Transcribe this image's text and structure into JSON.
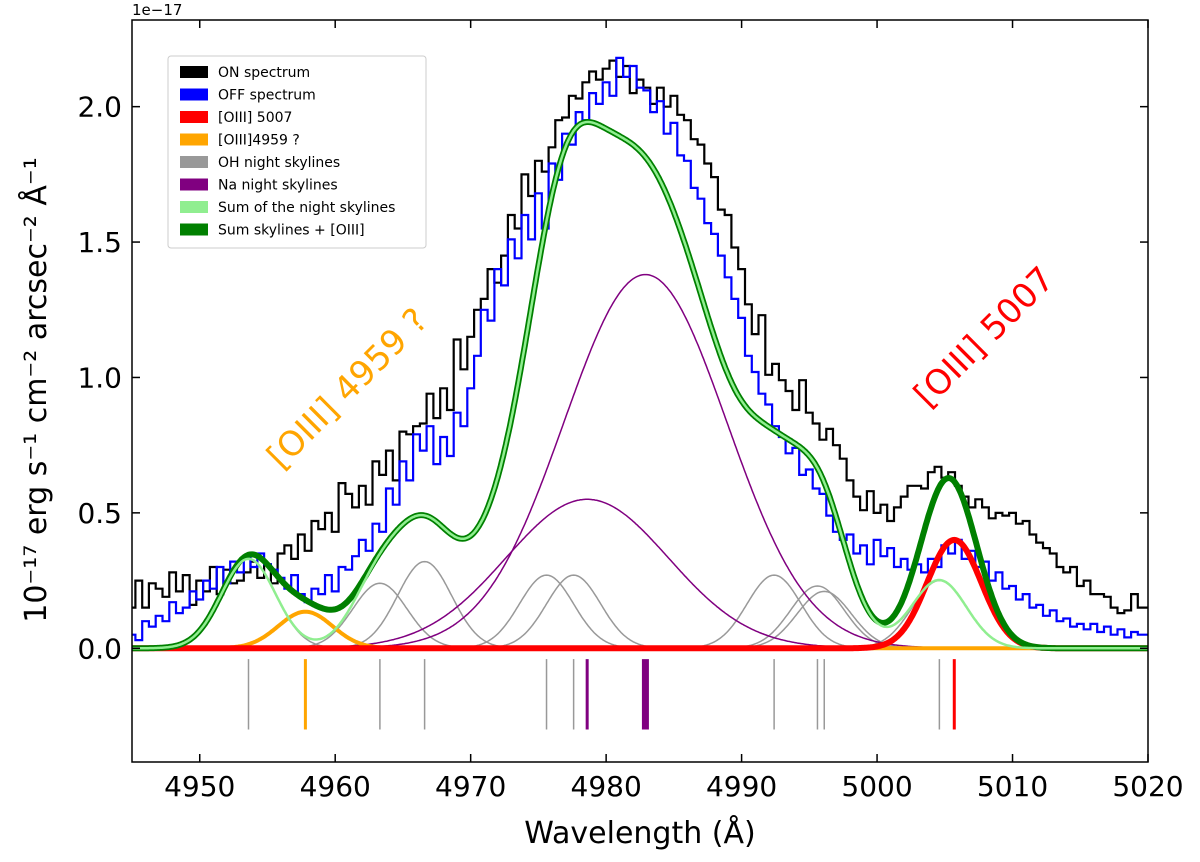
{
  "chart_data": {
    "type": "line",
    "title": "",
    "xlabel": "Wavelength (Å)",
    "ylabel": "10⁻¹⁷ erg s⁻¹ cm⁻² arcsec⁻² Å⁻¹",
    "offset_label": "1e−17",
    "xlim": [
      4945,
      5020
    ],
    "ylim": [
      -0.42,
      2.32
    ],
    "xticks": [
      4950,
      4960,
      4970,
      4980,
      4990,
      5000,
      5010,
      5020
    ],
    "yticks": [
      0.0,
      0.5,
      1.0,
      1.5,
      2.0
    ],
    "ytick_labels": [
      "0.0",
      "0.5",
      "1.0",
      "1.5",
      "2.0"
    ],
    "legend_position": "top-left",
    "legend": [
      {
        "label": "ON spectrum",
        "color": "#000000"
      },
      {
        "label": "OFF spectrum",
        "color": "#0000ff"
      },
      {
        "label": "[OIII] 5007",
        "color": "#ff0000"
      },
      {
        "label": "[OIII]4959 ?",
        "color": "#ffa500"
      },
      {
        "label": "OH night skylines",
        "color": "#999999"
      },
      {
        "label": "Na night skylines",
        "color": "#800080"
      },
      {
        "label": "Sum of the night skylines",
        "color": "#90ee90"
      },
      {
        "label": "Sum skylines + [OIII]",
        "color": "#008000"
      }
    ],
    "annotations": [
      {
        "text": "[OIII] 4959 ?",
        "color": "#ffa500",
        "x": 4961.5,
        "y": 0.93,
        "rotation": -45
      },
      {
        "text": "[OIII] 5007",
        "color": "#ff0000",
        "x": 5008.5,
        "y": 1.12,
        "rotation": -45
      }
    ],
    "components": {
      "oiii_5007": {
        "center": 5005.7,
        "amplitude": 0.4,
        "sigma": 2.0,
        "color": "#ff0000"
      },
      "oiii_4959": {
        "center": 4957.8,
        "amplitude": 0.135,
        "sigma": 2.0,
        "color": "#ffa500"
      },
      "oh_lines": {
        "color": "#999999",
        "lines": [
          {
            "center": 4953.6,
            "amplitude": 0.33,
            "sigma": 2.0
          },
          {
            "center": 4963.3,
            "amplitude": 0.24,
            "sigma": 2.0
          },
          {
            "center": 4966.6,
            "amplitude": 0.32,
            "sigma": 2.0
          },
          {
            "center": 4975.6,
            "amplitude": 0.27,
            "sigma": 2.0
          },
          {
            "center": 4977.6,
            "amplitude": 0.27,
            "sigma": 2.0
          },
          {
            "center": 4992.4,
            "amplitude": 0.27,
            "sigma": 2.0
          },
          {
            "center": 4995.6,
            "amplitude": 0.23,
            "sigma": 2.0
          },
          {
            "center": 4996.1,
            "amplitude": 0.21,
            "sigma": 2.0
          },
          {
            "center": 5004.6,
            "amplitude": 0.25,
            "sigma": 2.0
          }
        ]
      },
      "na_lines": {
        "color": "#800080",
        "lines": [
          {
            "center": 4978.6,
            "amplitude": 0.55,
            "sigma": 6.0
          },
          {
            "center": 4982.9,
            "amplitude": 1.38,
            "sigma": 6.0
          }
        ]
      }
    },
    "line_markers": [
      {
        "x": 4953.6,
        "color": "#999999",
        "weight": "thin"
      },
      {
        "x": 4957.8,
        "color": "#ffa500",
        "weight": "medium"
      },
      {
        "x": 4963.3,
        "color": "#999999",
        "weight": "thin"
      },
      {
        "x": 4966.6,
        "color": "#999999",
        "weight": "thin"
      },
      {
        "x": 4975.6,
        "color": "#999999",
        "weight": "thin"
      },
      {
        "x": 4977.6,
        "color": "#999999",
        "weight": "thin"
      },
      {
        "x": 4978.6,
        "color": "#800080",
        "weight": "medium"
      },
      {
        "x": 4982.9,
        "color": "#800080",
        "weight": "thick"
      },
      {
        "x": 4992.4,
        "color": "#999999",
        "weight": "thin"
      },
      {
        "x": 4995.6,
        "color": "#999999",
        "weight": "thin"
      },
      {
        "x": 4996.1,
        "color": "#999999",
        "weight": "thin"
      },
      {
        "x": 5004.6,
        "color": "#999999",
        "weight": "thin"
      },
      {
        "x": 5005.7,
        "color": "#ff0000",
        "weight": "medium"
      }
    ],
    "marker_range": [
      -0.3,
      -0.04
    ],
    "series": [
      {
        "name": "ON spectrum",
        "color": "#000000",
        "step": true,
        "x": [
          4945.0,
          4945.5,
          4946.0,
          4946.5,
          4947.0,
          4947.5,
          4948.0,
          4948.5,
          4949.0,
          4949.5,
          4950.0,
          4950.5,
          4951.0,
          4951.5,
          4952.0,
          4952.5,
          4953.0,
          4953.5,
          4954.0,
          4954.5,
          4955.0,
          4955.5,
          4956.0,
          4956.5,
          4957.0,
          4957.5,
          4958.0,
          4958.5,
          4959.0,
          4959.5,
          4960.0,
          4960.5,
          4961.0,
          4961.5,
          4962.0,
          4962.5,
          4963.0,
          4963.5,
          4964.0,
          4964.5,
          4965.0,
          4965.5,
          4966.0,
          4966.5,
          4967.0,
          4967.5,
          4968.0,
          4968.5,
          4969.0,
          4969.5,
          4970.0,
          4970.5,
          4971.0,
          4971.5,
          4972.0,
          4972.5,
          4973.0,
          4973.5,
          4974.0,
          4974.5,
          4975.0,
          4975.5,
          4976.0,
          4976.5,
          4977.0,
          4977.5,
          4978.0,
          4978.5,
          4979.0,
          4979.5,
          4980.0,
          4980.5,
          4981.0,
          4981.5,
          4982.0,
          4982.5,
          4983.0,
          4983.5,
          4984.0,
          4984.5,
          4985.0,
          4985.5,
          4986.0,
          4986.5,
          4987.0,
          4987.5,
          4988.0,
          4988.5,
          4989.0,
          4989.5,
          4990.0,
          4990.5,
          4991.0,
          4991.5,
          4992.0,
          4992.5,
          4993.0,
          4993.5,
          4994.0,
          4994.5,
          4995.0,
          4995.5,
          4996.0,
          4996.5,
          4997.0,
          4997.5,
          4998.0,
          4998.5,
          4999.0,
          4999.5,
          5000.0,
          5000.5,
          5001.0,
          5001.5,
          5002.0,
          5002.5,
          5003.0,
          5003.5,
          5004.0,
          5004.5,
          5005.0,
          5005.5,
          5006.0,
          5006.5,
          5007.0,
          5007.5,
          5008.0,
          5008.5,
          5009.0,
          5009.5,
          5010.0,
          5010.5,
          5011.0,
          5011.5,
          5012.0,
          5012.5,
          5013.0,
          5013.5,
          5014.0,
          5014.5,
          5015.0,
          5015.5,
          5016.0,
          5016.5,
          5017.0,
          5017.5,
          5018.0,
          5018.5,
          5019.0,
          5019.5,
          5020.0
        ],
        "y": [
          0.15,
          0.25,
          0.15,
          0.24,
          0.22,
          0.19,
          0.28,
          0.21,
          0.27,
          0.16,
          0.25,
          0.21,
          0.3,
          0.2,
          0.29,
          0.24,
          0.25,
          0.28,
          0.32,
          0.26,
          0.31,
          0.24,
          0.35,
          0.38,
          0.33,
          0.42,
          0.36,
          0.47,
          0.44,
          0.5,
          0.43,
          0.61,
          0.57,
          0.52,
          0.6,
          0.53,
          0.69,
          0.64,
          0.73,
          0.62,
          0.8,
          0.79,
          0.82,
          0.83,
          0.94,
          0.85,
          0.96,
          0.88,
          1.14,
          1.03,
          1.15,
          1.25,
          1.29,
          1.4,
          1.35,
          1.45,
          1.6,
          1.55,
          1.75,
          1.67,
          1.8,
          1.76,
          1.85,
          1.95,
          1.96,
          2.04,
          2.03,
          2.09,
          2.13,
          2.1,
          2.14,
          2.17,
          2.11,
          2.15,
          2.05,
          2.1,
          2.07,
          2.01,
          2.07,
          2.0,
          2.04,
          1.97,
          1.95,
          1.88,
          1.86,
          1.79,
          1.74,
          1.62,
          1.6,
          1.48,
          1.4,
          1.27,
          1.16,
          1.23,
          1.01,
          1.05,
          0.99,
          0.95,
          0.88,
          0.99,
          0.87,
          0.83,
          0.77,
          0.81,
          0.75,
          0.7,
          0.62,
          0.56,
          0.51,
          0.58,
          0.5,
          0.53,
          0.47,
          0.52,
          0.56,
          0.6,
          0.6,
          0.59,
          0.65,
          0.67,
          0.63,
          0.65,
          0.6,
          0.56,
          0.52,
          0.55,
          0.52,
          0.48,
          0.5,
          0.49,
          0.5,
          0.46,
          0.47,
          0.42,
          0.39,
          0.37,
          0.35,
          0.3,
          0.28,
          0.3,
          0.23,
          0.25,
          0.2,
          0.2,
          0.19,
          0.15,
          0.13,
          0.14,
          0.2,
          0.15,
          0.15
        ]
      },
      {
        "name": "OFF spectrum",
        "color": "#0000ff",
        "step": true,
        "x": [
          4945.0,
          4945.5,
          4946.0,
          4946.5,
          4947.0,
          4947.5,
          4948.0,
          4948.5,
          4949.0,
          4949.5,
          4950.0,
          4950.5,
          4951.0,
          4951.5,
          4952.0,
          4952.5,
          4953.0,
          4953.5,
          4954.0,
          4954.5,
          4955.0,
          4955.5,
          4956.0,
          4956.5,
          4957.0,
          4957.5,
          4958.0,
          4958.5,
          4959.0,
          4959.5,
          4960.0,
          4960.5,
          4961.0,
          4961.5,
          4962.0,
          4962.5,
          4963.0,
          4963.5,
          4964.0,
          4964.5,
          4965.0,
          4965.5,
          4966.0,
          4966.5,
          4967.0,
          4967.5,
          4968.0,
          4968.5,
          4969.0,
          4969.5,
          4970.0,
          4970.5,
          4971.0,
          4971.5,
          4972.0,
          4972.5,
          4973.0,
          4973.5,
          4974.0,
          4974.5,
          4975.0,
          4975.5,
          4976.0,
          4976.5,
          4977.0,
          4977.5,
          4978.0,
          4978.5,
          4979.0,
          4979.5,
          4980.0,
          4980.5,
          4981.0,
          4981.5,
          4982.0,
          4982.5,
          4983.0,
          4983.5,
          4984.0,
          4984.5,
          4985.0,
          4985.5,
          4986.0,
          4986.5,
          4987.0,
          4987.5,
          4988.0,
          4988.5,
          4989.0,
          4989.5,
          4990.0,
          4990.5,
          4991.0,
          4991.5,
          4992.0,
          4992.5,
          4993.0,
          4993.5,
          4994.0,
          4994.5,
          4995.0,
          4995.5,
          4996.0,
          4996.5,
          4997.0,
          4997.5,
          4998.0,
          4998.5,
          4999.0,
          4999.5,
          5000.0,
          5000.5,
          5001.0,
          5001.5,
          5002.0,
          5002.5,
          5003.0,
          5003.5,
          5004.0,
          5004.5,
          5005.0,
          5005.5,
          5006.0,
          5006.5,
          5007.0,
          5007.5,
          5008.0,
          5008.5,
          5009.0,
          5009.5,
          5010.0,
          5010.5,
          5011.0,
          5011.5,
          5012.0,
          5012.5,
          5013.0,
          5013.5,
          5014.0,
          5014.5,
          5015.0,
          5015.5,
          5016.0,
          5016.5,
          5017.0,
          5017.5,
          5018.0,
          5018.5,
          5019.0,
          5019.5,
          5020.0
        ],
        "y": [
          0.05,
          0.03,
          0.1,
          0.08,
          0.12,
          0.1,
          0.17,
          0.13,
          0.15,
          0.21,
          0.18,
          0.25,
          0.22,
          0.3,
          0.24,
          0.32,
          0.28,
          0.34,
          0.3,
          0.35,
          0.31,
          0.29,
          0.26,
          0.22,
          0.27,
          0.2,
          0.17,
          0.22,
          0.2,
          0.27,
          0.21,
          0.3,
          0.29,
          0.34,
          0.4,
          0.36,
          0.46,
          0.43,
          0.59,
          0.53,
          0.69,
          0.62,
          0.79,
          0.73,
          0.82,
          0.68,
          0.78,
          0.71,
          0.87,
          0.82,
          0.96,
          1.08,
          1.25,
          1.21,
          1.4,
          1.34,
          1.51,
          1.44,
          1.6,
          1.51,
          1.68,
          1.55,
          1.79,
          1.73,
          1.9,
          1.86,
          1.98,
          1.95,
          2.05,
          2.01,
          2.09,
          2.04,
          2.18,
          2.11,
          2.15,
          2.07,
          2.06,
          1.98,
          2.02,
          1.9,
          1.94,
          1.82,
          1.8,
          1.7,
          1.66,
          1.57,
          1.53,
          1.45,
          1.37,
          1.29,
          1.22,
          1.08,
          1.02,
          0.94,
          0.9,
          0.82,
          0.78,
          0.72,
          0.74,
          0.64,
          0.66,
          0.59,
          0.57,
          0.49,
          0.43,
          0.4,
          0.42,
          0.35,
          0.38,
          0.31,
          0.4,
          0.34,
          0.37,
          0.3,
          0.33,
          0.29,
          0.31,
          0.28,
          0.33,
          0.3,
          0.38,
          0.35,
          0.4,
          0.33,
          0.36,
          0.3,
          0.32,
          0.25,
          0.28,
          0.22,
          0.23,
          0.18,
          0.2,
          0.15,
          0.16,
          0.12,
          0.14,
          0.1,
          0.11,
          0.08,
          0.09,
          0.07,
          0.09,
          0.06,
          0.08,
          0.05,
          0.07,
          0.04,
          0.06,
          0.05,
          0.05
        ]
      }
    ]
  }
}
